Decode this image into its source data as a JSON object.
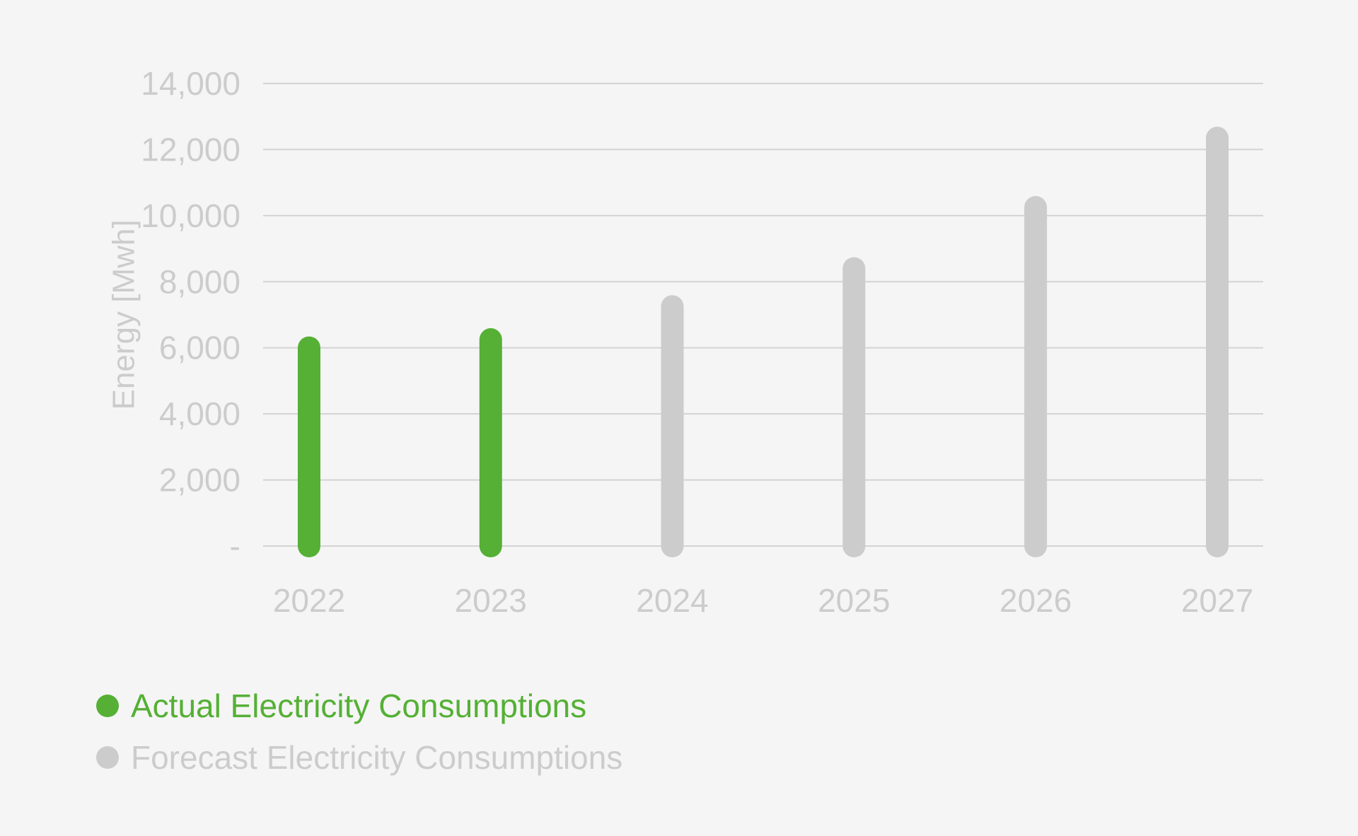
{
  "colors": {
    "background": "#f5f5f5",
    "actual": "#55b035",
    "forecast": "#cccccc",
    "grid": "#d3d3d3",
    "text_muted": "#cccccc"
  },
  "chart_data": {
    "type": "bar",
    "categories": [
      "2022",
      "2023",
      "2024",
      "2025",
      "2026",
      "2027"
    ],
    "series": [
      {
        "name": "Actual Electricity Consumptions",
        "values": [
          6000,
          6250,
          null,
          null,
          null,
          null
        ]
      },
      {
        "name": "Forecast Electricity Consumptions",
        "values": [
          null,
          null,
          7250,
          8400,
          10250,
          12350
        ]
      }
    ],
    "title": "",
    "xlabel": "",
    "ylabel": "Energy [Mwh]",
    "ylim": [
      0,
      14000
    ],
    "yticks": [
      0,
      2000,
      4000,
      6000,
      8000,
      10000,
      12000,
      14000
    ],
    "ytick_labels": [
      "-",
      "2,000",
      "4,000",
      "6,000",
      "8,000",
      "10,000",
      "12,000",
      "14,000"
    ],
    "grid": true,
    "legend_position": "bottom-left"
  }
}
